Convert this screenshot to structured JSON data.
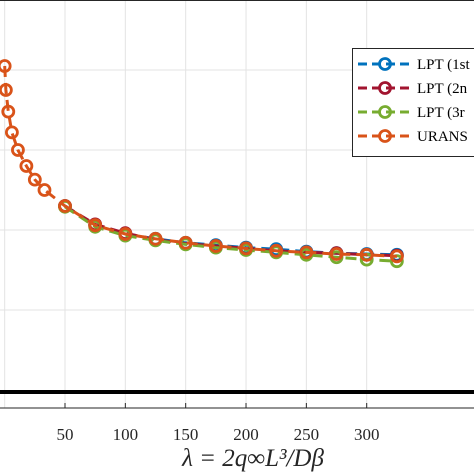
{
  "chart_data": {
    "type": "line",
    "title": "",
    "xlabel": "λ = 2q∞L³/Dβ",
    "ylabel": "",
    "xlim": [
      -5,
      330
    ],
    "x_ticks": [
      50,
      100,
      150,
      200,
      250,
      300
    ],
    "y_axis_note": "y tick labels cropped out of the image; values below are in an inferred relative scale (gridlines = 1 unit)",
    "ylim": [
      0,
      5.8
    ],
    "grid": true,
    "legend_position": "top-right (clipped at image edge)",
    "series": [
      {
        "name": "LPT (1st",
        "color": "#0072BD",
        "style": "dashed",
        "marker": "circle",
        "x": [
          50,
          75,
          100,
          125,
          150,
          175,
          200,
          225,
          250,
          275,
          300,
          325
        ],
        "y": [
          2.3,
          2.06,
          1.95,
          1.89,
          1.84,
          1.81,
          1.78,
          1.76,
          1.73,
          1.71,
          1.7,
          1.69
        ]
      },
      {
        "name": "LPT (2n",
        "color": "#A2142F",
        "style": "dashed",
        "marker": "circle",
        "x": [
          50,
          75,
          100,
          125,
          150,
          175,
          200,
          225,
          250,
          275,
          300,
          325
        ],
        "y": [
          2.3,
          2.07,
          1.96,
          1.88,
          1.83,
          1.8,
          1.77,
          1.74,
          1.72,
          1.71,
          1.69,
          1.68
        ]
      },
      {
        "name": "LPT (3r",
        "color": "#77AC30",
        "style": "dashed",
        "marker": "circle",
        "x": [
          50,
          75,
          100,
          125,
          150,
          175,
          200,
          225,
          250,
          275,
          300,
          325
        ],
        "y": [
          2.29,
          2.04,
          1.93,
          1.87,
          1.82,
          1.78,
          1.75,
          1.72,
          1.69,
          1.66,
          1.63,
          1.61
        ]
      },
      {
        "name": "URANS",
        "color": "#D95319",
        "style": "dashed",
        "marker": "circle",
        "x": [
          0,
          1,
          3,
          6,
          11,
          18,
          25,
          33,
          50,
          75,
          100,
          125,
          150,
          175,
          200,
          225,
          250,
          275,
          300,
          325
        ],
        "y": [
          4.05,
          3.75,
          3.48,
          3.22,
          3.0,
          2.8,
          2.63,
          2.5,
          2.3,
          2.06,
          1.95,
          1.89,
          1.84,
          1.8,
          1.77,
          1.74,
          1.72,
          1.7,
          1.69,
          1.67
        ]
      }
    ],
    "reference_line": {
      "y": 0.15,
      "color": "#000000"
    }
  }
}
